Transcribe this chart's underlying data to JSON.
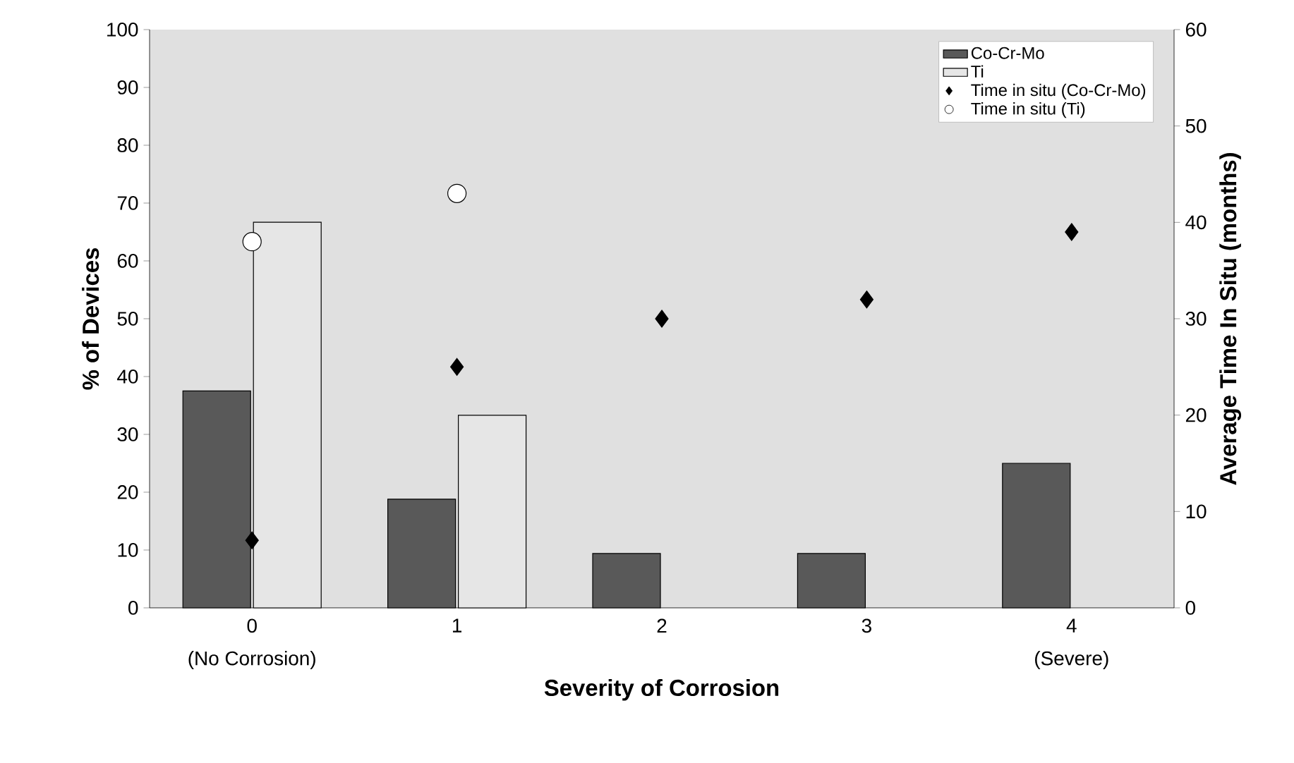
{
  "chart_data": {
    "type": "bar",
    "xlabel": "Severity of Corrosion",
    "ylabel": "% of Devices",
    "y2label": "Average Time In Situ (months)",
    "categories": [
      "0",
      "1",
      "2",
      "3",
      "4"
    ],
    "series": [
      {
        "name": "Co-Cr-Mo",
        "color": "#595959",
        "values": [
          37.5,
          18.8,
          9.4,
          9.4,
          25
        ]
      },
      {
        "name": "Ti",
        "color": "#e6e6e6",
        "values": [
          66.7,
          33.3,
          null,
          null,
          null
        ]
      },
      {
        "name": "Time in situ (Co-Cr-Mo)",
        "type": "scatter",
        "axis": "y2",
        "marker": "diamond",
        "color": "#000000",
        "values": [
          7,
          25,
          30,
          32,
          39
        ]
      },
      {
        "name": "Time in situ (Ti)",
        "type": "scatter",
        "axis": "y2",
        "marker": "circle",
        "color": "#ffffff",
        "values": [
          38,
          43,
          null,
          null,
          null
        ]
      }
    ],
    "annotations": [
      "(No Corrosion)",
      "(Severe)"
    ],
    "ylim": [
      0,
      100
    ],
    "yticks": [
      0,
      10,
      20,
      30,
      40,
      50,
      60,
      70,
      80,
      90,
      100
    ],
    "y2lim": [
      0,
      60
    ],
    "y2ticks": [
      0,
      10,
      20,
      30,
      40,
      50,
      60
    ],
    "legend": "top right",
    "grid": false
  }
}
